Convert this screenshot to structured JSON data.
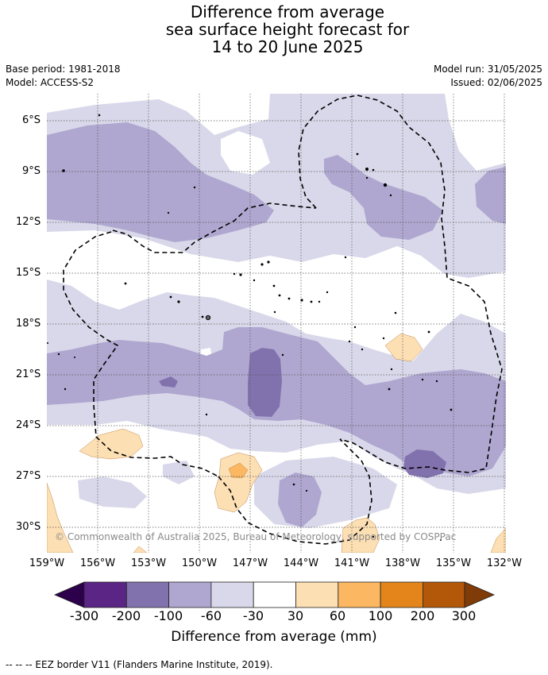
{
  "title_lines": [
    "Difference from average",
    "sea surface height forecast for",
    "14 to 20 June 2025"
  ],
  "base_period": "Base period: 1981-2018",
  "model": "Model: ACCESS-S2",
  "model_run": "Model run: 31/05/2025",
  "issued": "Issued: 02/06/2025",
  "copyright": "© Commonwealth of Australia 2025, Bureau of Meteorology, supported by COSPPac",
  "lat_ticks": [
    "6°S",
    "9°S",
    "12°S",
    "15°S",
    "18°S",
    "21°S",
    "24°S",
    "27°S",
    "30°S"
  ],
  "lon_ticks": [
    "159°W",
    "156°W",
    "153°W",
    "150°W",
    "147°W",
    "144°W",
    "141°W",
    "138°W",
    "135°W",
    "132°W"
  ],
  "colorbar": {
    "ticks": [
      "-300",
      "-200",
      "-100",
      "-60",
      "-30",
      "30",
      "60",
      "100",
      "200",
      "300"
    ],
    "colors": [
      "#5a2585",
      "#8172ae",
      "#afa7cf",
      "#d8d8ea",
      "#ffffff",
      "#fddfb4",
      "#fbb761",
      "#e3851b",
      "#b35808"
    ],
    "under_color": "#2d004b",
    "over_color": "#7f3b08",
    "title": "Difference from average (mm)"
  },
  "footnote": "--  --  -- EEZ border V11 (Flanders Marine Institute, 2019)."
}
